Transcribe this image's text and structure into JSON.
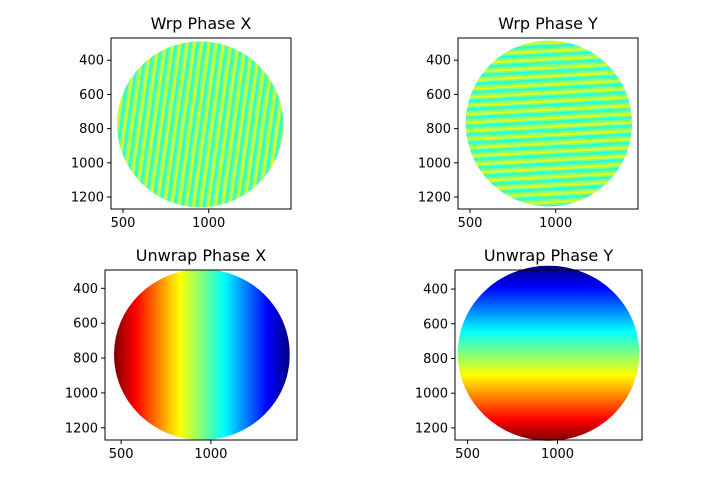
{
  "chart_data": [
    {
      "type": "heatmap",
      "title": "Wrp Phase X",
      "xlabel": "",
      "ylabel": "",
      "pattern": "wrapped-vertical-fringes",
      "colormap": "jet",
      "xlim": [
        430,
        1480
      ],
      "ylim": [
        1270,
        270
      ],
      "xticks": [
        500,
        1000
      ],
      "yticks": [
        400,
        600,
        800,
        1000,
        1200
      ],
      "aperture": {
        "shape": "circle",
        "cx": 950,
        "cy": 775,
        "r": 485
      }
    },
    {
      "type": "heatmap",
      "title": "Wrp Phase Y",
      "xlabel": "",
      "ylabel": "",
      "pattern": "wrapped-horizontal-fringes",
      "colormap": "jet",
      "xlim": [
        430,
        1480
      ],
      "ylim": [
        1270,
        270
      ],
      "xticks": [
        500,
        1000
      ],
      "yticks": [
        400,
        600,
        800,
        1000,
        1200
      ],
      "aperture": {
        "shape": "circle",
        "cx": 960,
        "cy": 770,
        "r": 485
      }
    },
    {
      "type": "heatmap",
      "title": "Unwrap Phase X",
      "xlabel": "",
      "ylabel": "",
      "pattern": "horizontal-gradient",
      "colormap": "jet-reversed",
      "xlim": [
        410,
        1480
      ],
      "ylim": [
        1270,
        295
      ],
      "xticks": [
        500,
        1000
      ],
      "yticks": [
        400,
        600,
        800,
        1000,
        1200
      ],
      "aperture": {
        "shape": "circle",
        "cx": 950,
        "cy": 780,
        "r": 490
      }
    },
    {
      "type": "heatmap",
      "title": "Unwrap Phase Y",
      "xlabel": "",
      "ylabel": "",
      "pattern": "vertical-gradient",
      "colormap": "jet",
      "xlim": [
        430,
        1470
      ],
      "ylim": [
        1270,
        290
      ],
      "xticks": [
        500,
        1000
      ],
      "yticks": [
        400,
        600,
        800,
        1000,
        1200
      ],
      "aperture": {
        "shape": "circle",
        "cx": 950,
        "cy": 770,
        "r": 505
      }
    }
  ],
  "colors": {
    "jet": [
      "#00007f",
      "#0000ff",
      "#007fff",
      "#00ffff",
      "#7fff7f",
      "#ffff00",
      "#ff7f00",
      "#ff0000",
      "#7f0000"
    ],
    "fringe_a": "#00ffff",
    "fringe_b": "#ffff00",
    "fringe_mid": "#7fff7f"
  }
}
